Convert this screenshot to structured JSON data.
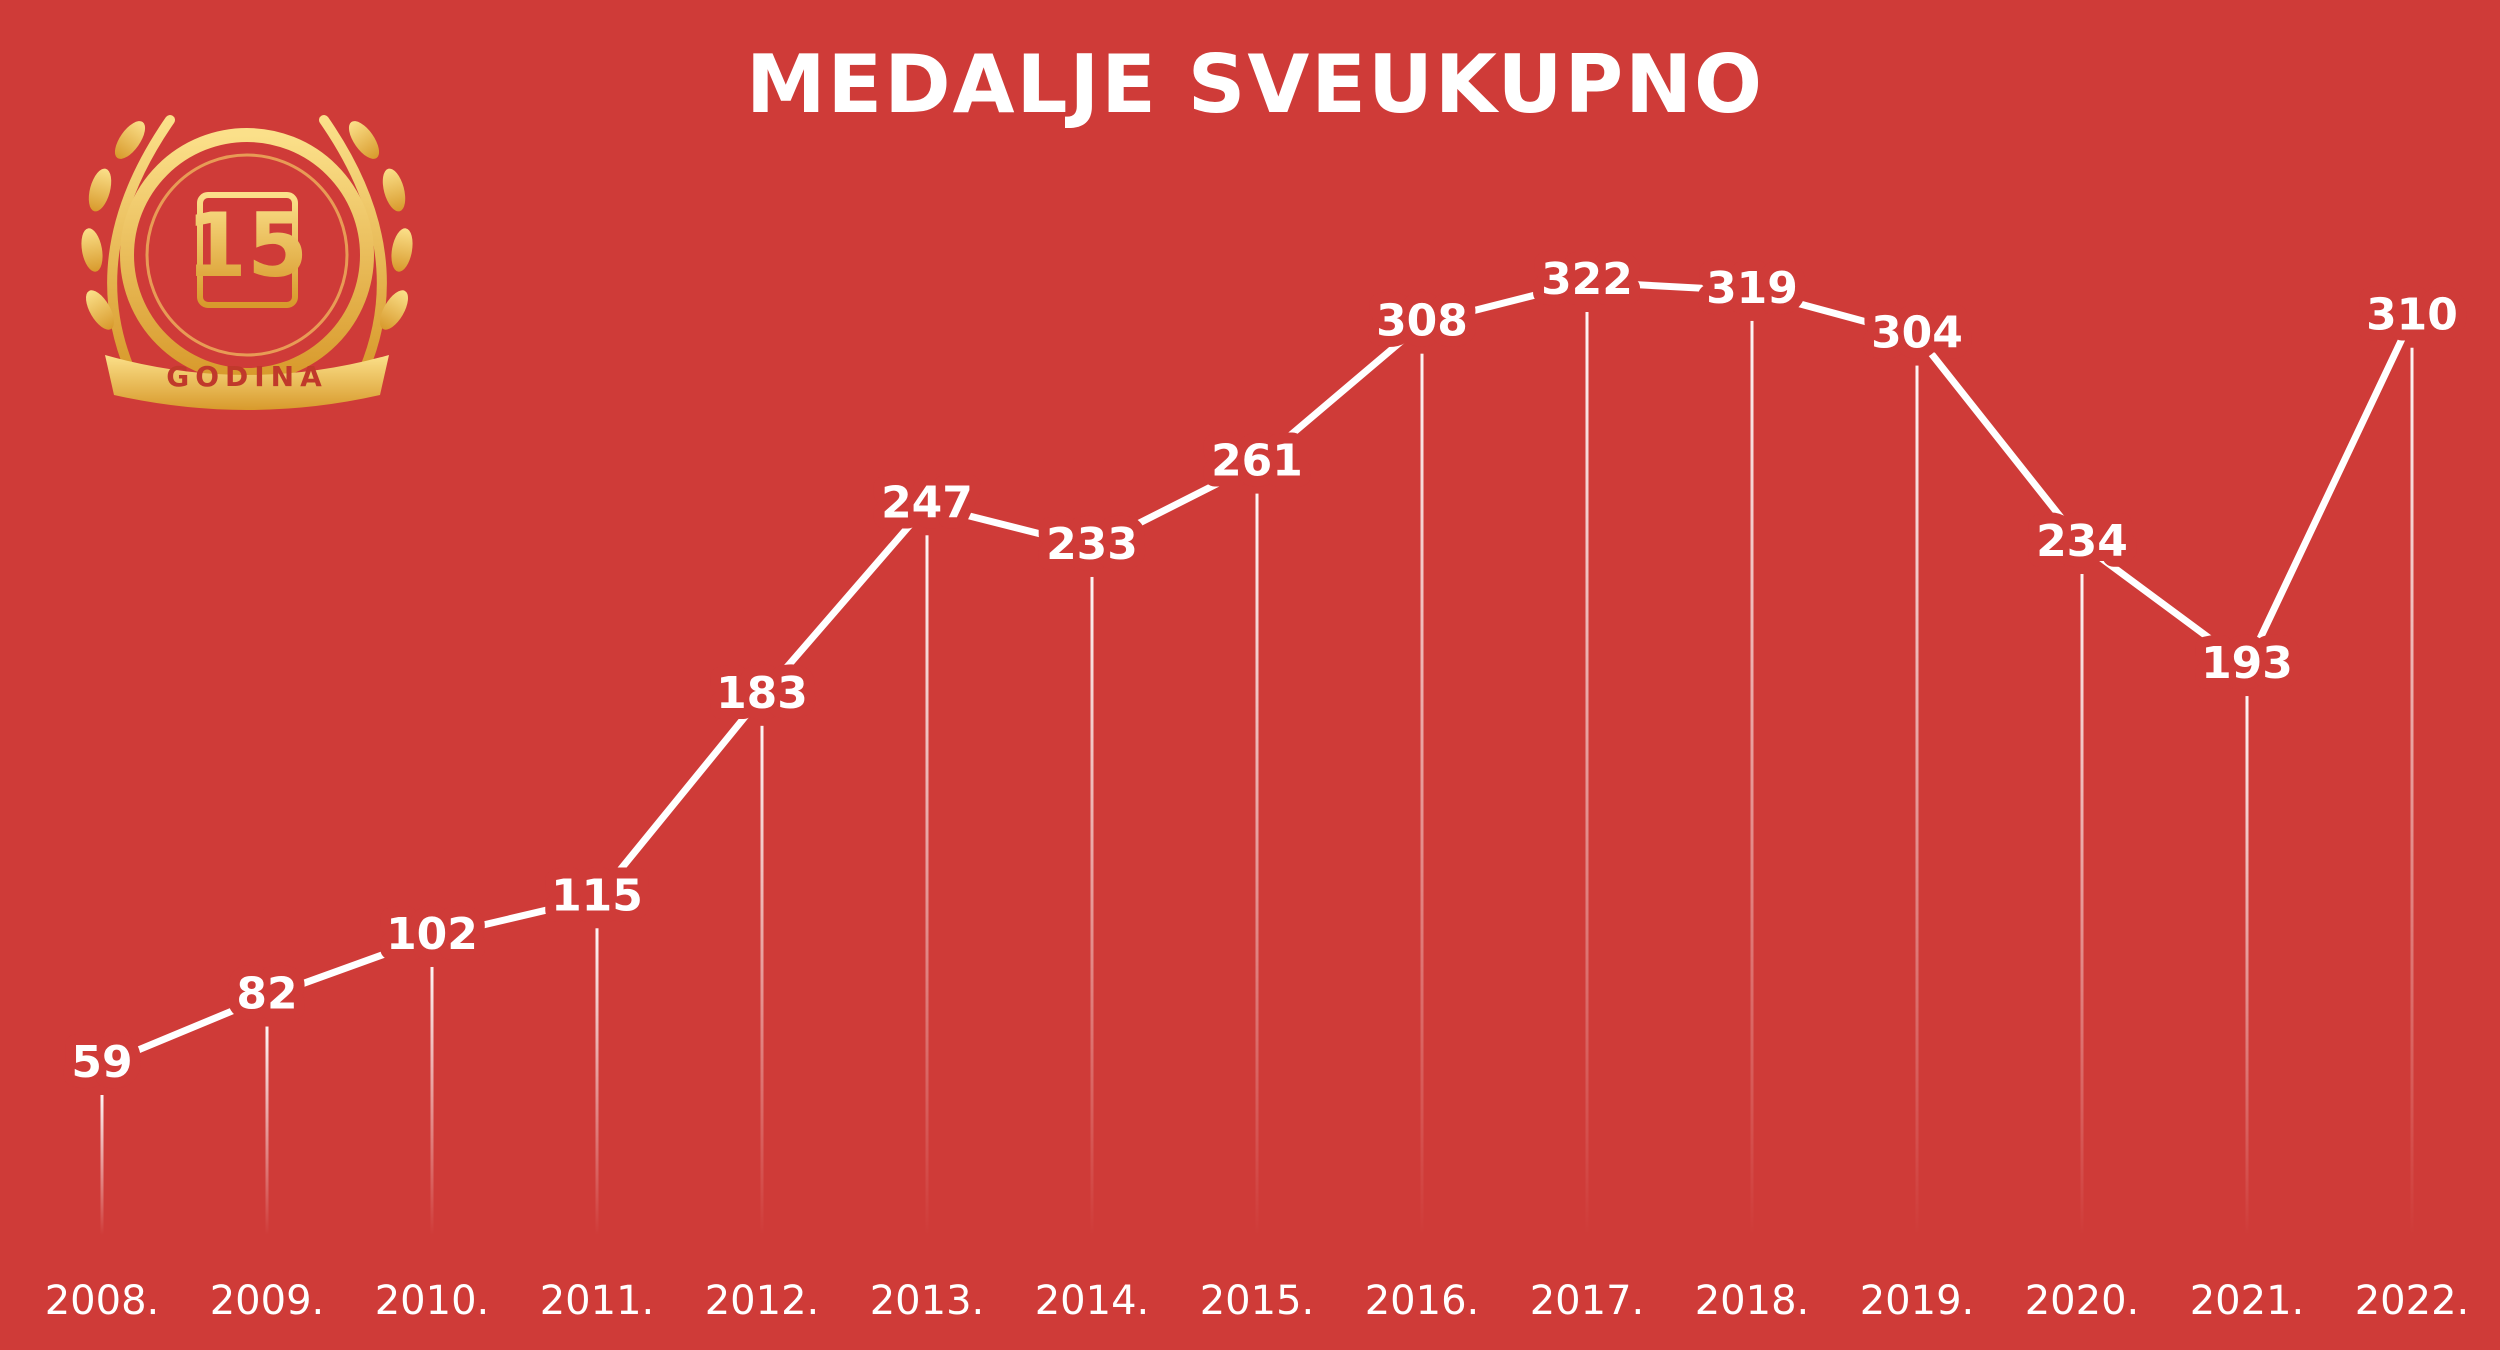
{
  "logo": {
    "number": "15",
    "label": "GODINA"
  },
  "chart_data": {
    "type": "line",
    "title": "MEDALJE SVEUKUPNO",
    "categories": [
      "2008.",
      "2009.",
      "2010.",
      "2011.",
      "2012.",
      "2013.",
      "2014.",
      "2015.",
      "2016.",
      "2017.",
      "2018.",
      "2019.",
      "2020.",
      "2021.",
      "2022."
    ],
    "values": [
      59,
      82,
      102,
      115,
      183,
      247,
      233,
      261,
      308,
      322,
      319,
      304,
      234,
      193,
      310
    ],
    "color": "#ffffff"
  }
}
